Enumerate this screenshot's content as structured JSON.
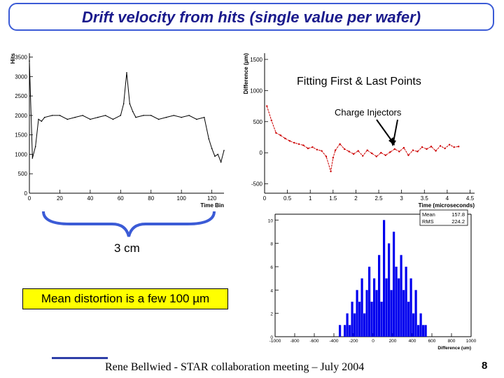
{
  "slide": {
    "title": "Drift velocity from hits (single value per wafer)",
    "footer": "Rene Bellwied - STAR collaboration meeting – July 2004",
    "page_number": "8",
    "annotations": {
      "fitting": "Fitting First & Last Points",
      "injectors": "Charge Injectors",
      "three_cm": "3 cm",
      "mean_distortion": "Mean distortion is a few 100 µm"
    }
  },
  "chart_data": [
    {
      "id": "hits",
      "type": "line",
      "ylabel": "Hits",
      "xlabel": "Time Bin",
      "xlim": [
        0,
        128
      ],
      "ylim": [
        0,
        3600
      ],
      "x_ticks": [
        "0",
        "20",
        "40",
        "60",
        "80",
        "100",
        "120"
      ],
      "y_ticks": [
        "0",
        "500",
        "1000",
        "1500",
        "2000",
        "2500",
        "3000",
        "3500"
      ],
      "line_color": "#000000",
      "x": [
        0,
        2,
        4,
        6,
        8,
        10,
        15,
        20,
        25,
        30,
        35,
        40,
        45,
        50,
        55,
        60,
        62,
        64,
        66,
        68,
        70,
        75,
        80,
        85,
        90,
        95,
        100,
        105,
        110,
        115,
        118,
        120,
        122,
        124,
        126,
        128
      ],
      "y": [
        3400,
        900,
        1200,
        1900,
        1850,
        1950,
        2000,
        2000,
        1900,
        1950,
        2000,
        1900,
        1950,
        2000,
        1900,
        2000,
        2300,
        3100,
        2300,
        2100,
        1950,
        2000,
        2000,
        1900,
        1950,
        2000,
        1950,
        2000,
        1900,
        1950,
        1400,
        1150,
        950,
        1000,
        800,
        1100
      ]
    },
    {
      "id": "difference",
      "type": "line",
      "ylabel": "Difference (µm)",
      "xlabel": "Time (microseconds)",
      "xlim": [
        0,
        4.6
      ],
      "ylim": [
        -650,
        1600
      ],
      "x_ticks": [
        "0",
        "0.5",
        "1",
        "1.5",
        "2",
        "2.5",
        "3",
        "3.5",
        "4",
        "4.5"
      ],
      "y_ticks": [
        "-500",
        "0",
        "500",
        "1000",
        "1500"
      ],
      "line_color": "#cc0000",
      "x": [
        0.05,
        0.15,
        0.25,
        0.35,
        0.45,
        0.55,
        0.65,
        0.75,
        0.85,
        0.95,
        1.05,
        1.15,
        1.25,
        1.35,
        1.45,
        1.5,
        1.55,
        1.65,
        1.75,
        1.85,
        1.95,
        2.05,
        2.15,
        2.25,
        2.35,
        2.45,
        2.55,
        2.65,
        2.75,
        2.85,
        2.95,
        3.05,
        3.15,
        3.25,
        3.35,
        3.45,
        3.55,
        3.65,
        3.75,
        3.85,
        3.95,
        4.05,
        4.15,
        4.25
      ],
      "y": [
        750,
        520,
        320,
        280,
        230,
        190,
        160,
        140,
        120,
        70,
        90,
        50,
        30,
        -60,
        -300,
        -80,
        40,
        140,
        60,
        20,
        -20,
        30,
        -50,
        40,
        -10,
        -60,
        0,
        -40,
        10,
        60,
        20,
        80,
        -40,
        40,
        20,
        90,
        60,
        100,
        30,
        110,
        70,
        130,
        90,
        100
      ]
    },
    {
      "id": "distortion-histogram",
      "type": "bar",
      "xlabel": "Difference (um)",
      "xlim": [
        -1000,
        1000
      ],
      "ylim": [
        0,
        10.5
      ],
      "x_ticks": [
        "-1000",
        "-800",
        "-600",
        "-400",
        "-200",
        "0",
        "200",
        "400",
        "600",
        "800",
        "1000"
      ],
      "y_ticks": [
        "0",
        "2",
        "4",
        "6",
        "8",
        "10"
      ],
      "bar_color": "#0000ee",
      "bin_width": 25,
      "bins_start": [
        -350,
        -325,
        -300,
        -275,
        -250,
        -225,
        -200,
        -175,
        -150,
        -125,
        -100,
        -75,
        -50,
        -25,
        0,
        25,
        50,
        75,
        100,
        125,
        150,
        175,
        200,
        225,
        250,
        275,
        300,
        325,
        350,
        375,
        400,
        425,
        450,
        475,
        500,
        525
      ],
      "values": [
        1,
        0,
        1,
        2,
        1,
        3,
        2,
        4,
        3,
        5,
        2,
        4,
        6,
        3,
        5,
        4,
        7,
        3,
        10,
        5,
        8,
        4,
        9,
        6,
        5,
        7,
        4,
        6,
        3,
        5,
        2,
        4,
        1,
        2,
        1,
        1
      ],
      "stats": {
        "mean_label": "Mean",
        "mean": "157.8",
        "rms_label": "RMS",
        "rms": "224.2"
      }
    }
  ]
}
